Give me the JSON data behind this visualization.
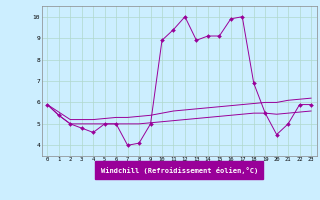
{
  "xlabel": "Windchill (Refroidissement éolien,°C)",
  "x_values": [
    0,
    1,
    2,
    3,
    4,
    5,
    6,
    7,
    8,
    9,
    10,
    11,
    12,
    13,
    14,
    15,
    16,
    17,
    18,
    19,
    20,
    21,
    22,
    23
  ],
  "y_main": [
    5.9,
    5.4,
    5.0,
    4.8,
    4.6,
    5.0,
    5.0,
    4.0,
    4.1,
    5.0,
    8.9,
    9.4,
    10.0,
    8.9,
    9.1,
    9.1,
    9.9,
    10.0,
    6.9,
    5.5,
    4.5,
    5.0,
    5.9,
    5.9
  ],
  "y_upper": [
    5.9,
    5.55,
    5.2,
    5.2,
    5.2,
    5.25,
    5.3,
    5.3,
    5.35,
    5.4,
    5.5,
    5.6,
    5.65,
    5.7,
    5.75,
    5.8,
    5.85,
    5.9,
    5.95,
    6.0,
    6.0,
    6.1,
    6.15,
    6.2
  ],
  "y_lower": [
    5.9,
    5.4,
    5.0,
    5.0,
    5.0,
    5.0,
    5.0,
    5.0,
    5.0,
    5.05,
    5.1,
    5.15,
    5.2,
    5.25,
    5.3,
    5.35,
    5.4,
    5.45,
    5.5,
    5.5,
    5.45,
    5.5,
    5.55,
    5.6
  ],
  "color": "#990099",
  "bg_color": "#cceeff",
  "grid_color": "#b0d8cc",
  "ylim": [
    3.5,
    10.5
  ],
  "xlim": [
    -0.5,
    23.5
  ],
  "yticks": [
    4,
    5,
    6,
    7,
    8,
    9,
    10
  ]
}
